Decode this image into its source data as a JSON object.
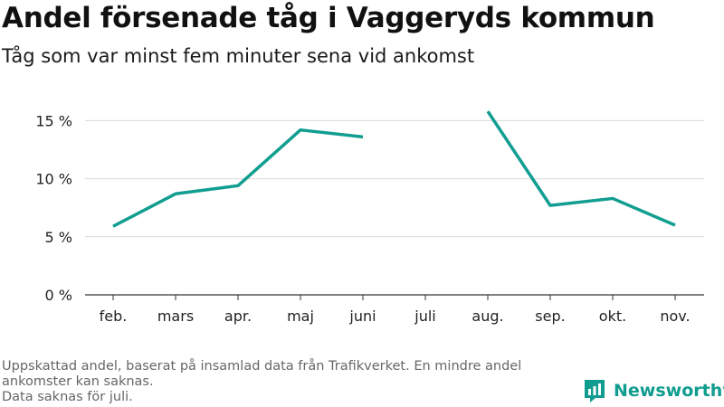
{
  "title": "Andel försenade tåg i Vaggeryds kommun",
  "subtitle": "Tåg som var minst fem minuter sena vid ankomst",
  "footnote": {
    "line1": "Uppskattad andel, baserat på insamlad data från Trafikverket. En mindre andel ankomster kan saknas.",
    "line2": "Data saknas för juli."
  },
  "brand": {
    "name": "Newsworthy",
    "icon": "newsworthy-logo-icon",
    "color": "#109c8f"
  },
  "chart_data": {
    "type": "line",
    "title": "Andel försenade tåg i Vaggeryds kommun",
    "subtitle": "Tåg som var minst fem minuter sena vid ankomst",
    "categories": [
      "feb.",
      "mars",
      "apr.",
      "maj",
      "juni",
      "juli",
      "aug.",
      "sep.",
      "okt.",
      "nov."
    ],
    "series": [
      {
        "values": [
          5.9,
          8.7,
          9.4,
          14.2,
          13.6,
          null,
          15.8,
          7.7,
          8.3,
          6.0
        ],
        "color": "#119e91"
      }
    ],
    "yticks": [
      0,
      5,
      10,
      15
    ],
    "ytick_labels": [
      "0 %",
      "5 %",
      "10 %",
      "15 %"
    ],
    "ylim": [
      0,
      15.8
    ],
    "grid": true,
    "xlabel": "",
    "ylabel": ""
  }
}
